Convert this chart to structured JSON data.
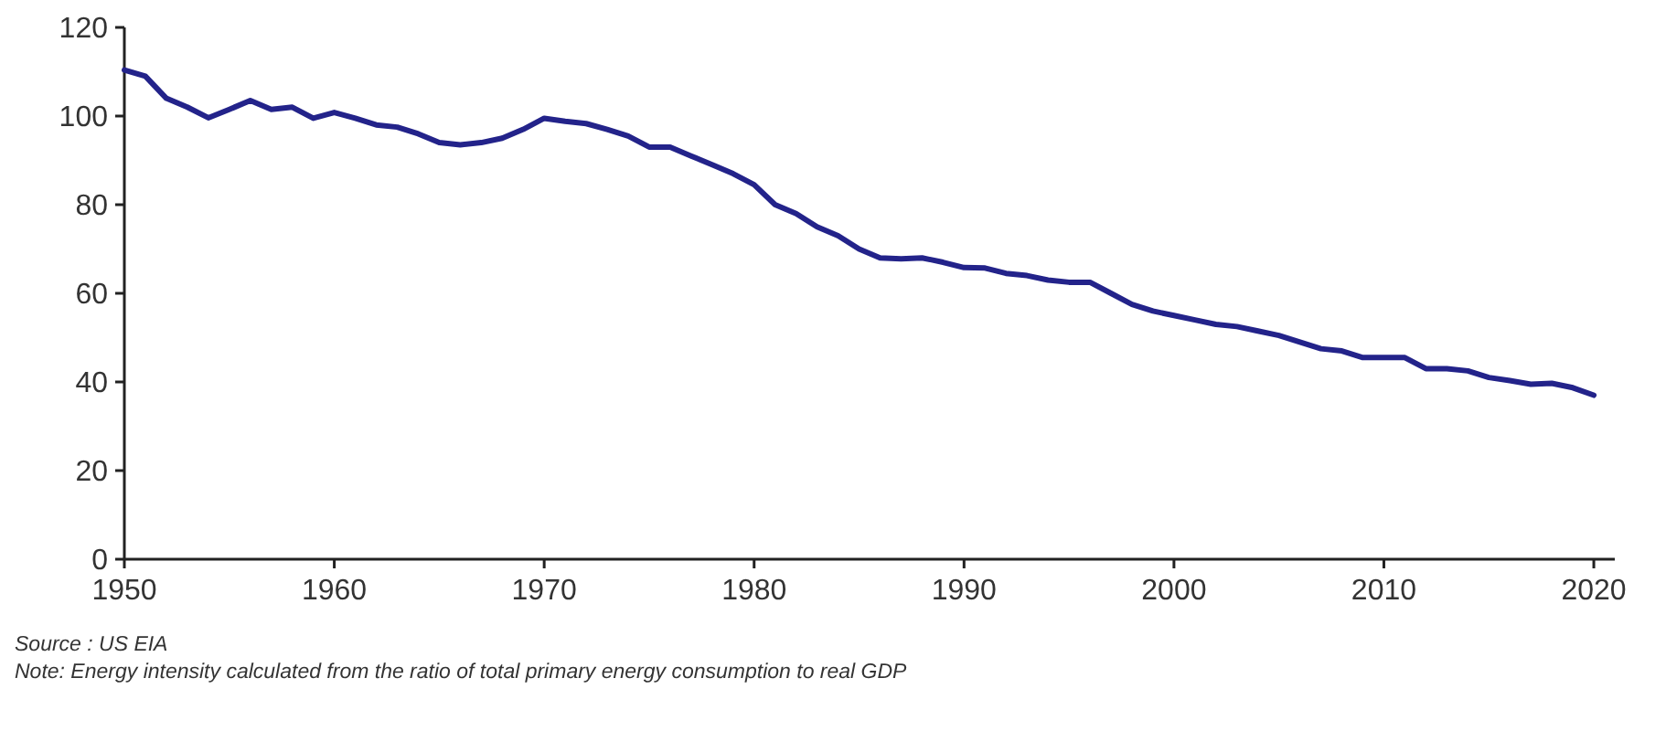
{
  "chart_data": {
    "type": "line",
    "x": [
      1950,
      1951,
      1952,
      1953,
      1954,
      1955,
      1956,
      1957,
      1958,
      1959,
      1960,
      1961,
      1962,
      1963,
      1964,
      1965,
      1966,
      1967,
      1968,
      1969,
      1970,
      1971,
      1972,
      1973,
      1974,
      1975,
      1976,
      1977,
      1978,
      1979,
      1980,
      1981,
      1982,
      1983,
      1984,
      1985,
      1986,
      1987,
      1988,
      1989,
      1990,
      1991,
      1992,
      1993,
      1994,
      1995,
      1996,
      1997,
      1998,
      1999,
      2000,
      2001,
      2002,
      2003,
      2004,
      2005,
      2006,
      2007,
      2008,
      2009,
      2010,
      2011,
      2012,
      2013,
      2014,
      2015,
      2016,
      2017,
      2018,
      2019,
      2020
    ],
    "series": [
      {
        "color": "#23238a",
        "values": [
          110.4,
          109,
          104,
          102,
          99.6,
          101.5,
          103.5,
          101.5,
          102,
          99.5,
          100.8,
          99.5,
          98,
          97.5,
          96,
          94,
          93.5,
          94,
          95,
          97,
          99.5,
          98.8,
          98.3,
          97,
          95.5,
          93,
          93,
          91,
          89,
          87,
          84.5,
          80,
          78,
          75,
          73,
          70,
          68,
          67.8,
          68,
          67,
          65.8,
          65.7,
          64.5,
          64,
          63,
          62.5,
          62.5,
          60,
          57.5,
          56,
          55,
          54,
          53,
          52.5,
          51.5,
          50.5,
          49,
          47.5,
          47,
          45.5,
          45.5,
          45.5,
          43,
          43,
          42.5,
          41,
          40.3,
          39.5,
          39.7,
          38.7,
          37
        ]
      }
    ],
    "xlim": [
      1950,
      2021
    ],
    "xticks": [
      1950,
      1960,
      1970,
      1980,
      1990,
      2000,
      2010,
      2020
    ],
    "ylim": [
      0,
      120
    ],
    "yticks": [
      0,
      20,
      40,
      60,
      80,
      100,
      120
    ],
    "marker": "none",
    "line_style": "solid",
    "annotations": [
      "Source : US EIA",
      "Note: Energy intensity calculated from the ratio of total primary energy consumption to real GDP"
    ]
  }
}
